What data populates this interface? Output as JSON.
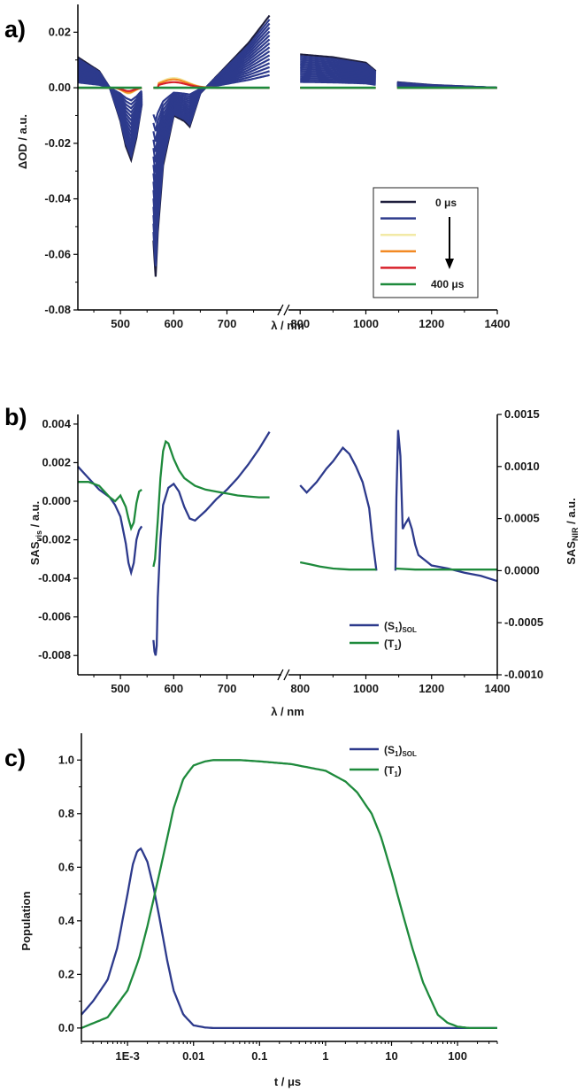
{
  "chart_data": [
    {
      "panel_label": "a)",
      "type": "line",
      "xlabel": "λ / nm",
      "ylabel": "ΔOD / a.u.",
      "xlim": [
        420,
        1400
      ],
      "ylim": [
        -0.08,
        0.03
      ],
      "x_axis_break": [
        780,
        800
      ],
      "x_ticks": [
        "500",
        "600",
        "700",
        "800",
        "1000",
        "1200",
        "1400"
      ],
      "y_ticks": [
        "0.02",
        "0.00",
        "-0.02",
        "-0.04",
        "-0.06",
        "-0.08"
      ],
      "legend": {
        "placement": "inside-right",
        "start_label": "0 μs",
        "end_label": "400 μs"
      },
      "series_colors": [
        "#1e1e3c",
        "#2d3a8c",
        "#f2eaa6",
        "#f28a24",
        "#d8202a",
        "#1e8a3c"
      ],
      "visible_segments": [
        [
          420,
          540
        ],
        [
          562,
          780
        ],
        [
          800,
          1030
        ],
        [
          1095,
          1400
        ]
      ],
      "profile_at_0us": {
        "x": [
          420,
          460,
          480,
          500,
          510,
          520,
          530,
          540,
          562,
          566,
          570,
          580,
          600,
          620,
          630,
          650,
          680,
          700,
          740,
          780,
          800,
          900,
          1000,
          1030,
          1095,
          1200,
          1400
        ],
        "y": [
          0.011,
          0.006,
          0.0,
          -0.012,
          -0.021,
          -0.026,
          -0.018,
          -0.006,
          -0.055,
          -0.068,
          -0.052,
          -0.028,
          -0.01,
          -0.012,
          -0.014,
          -0.002,
          0.004,
          0.008,
          0.016,
          0.026,
          0.012,
          0.011,
          0.009,
          0.006,
          0.002,
          0.001,
          0.0
        ]
      }
    },
    {
      "panel_label": "b)",
      "type": "line",
      "xlabel": "λ / nm",
      "ylabel_left": "SAS",
      "ylabel_left_sub": "vis",
      "ylabel_left_rest": " / a.u.",
      "ylabel_right": "SAS",
      "ylabel_right_sub": "NIR",
      "ylabel_right_rest": " / a.u.",
      "xlim": [
        420,
        1400
      ],
      "ylim_left": [
        -0.009,
        0.0045
      ],
      "ylim_right": [
        -0.001,
        0.0015
      ],
      "x_axis_break": [
        780,
        800
      ],
      "x_ticks": [
        "500",
        "600",
        "700",
        "800",
        "1000",
        "1200",
        "1400"
      ],
      "y_ticks_left": [
        "0.004",
        "0.002",
        "0.000",
        "-0.002",
        "-0.004",
        "-0.006",
        "-0.008"
      ],
      "y_ticks_right": [
        "0.0015",
        "0.0010",
        "0.0005",
        "0.0000",
        "-0.0005",
        "-0.0010"
      ],
      "legend": {
        "placement": "lower-right-of-center"
      },
      "series": [
        {
          "name": "(S",
          "name_sub": "1",
          "name_suffix": ")",
          "name_suffix_sub": "SOL",
          "color": "#2d3a8c",
          "vis_segments": [
            {
              "x": [
                420,
                440,
                460,
                480,
                490,
                500,
                510,
                515,
                520,
                525,
                530,
                535,
                540
              ],
              "y": [
                0.0018,
                0.0012,
                0.0006,
                0.0002,
                -0.0002,
                -0.0008,
                -0.0022,
                -0.0032,
                -0.0037,
                -0.0032,
                -0.002,
                -0.0015,
                -0.0013
              ]
            },
            {
              "x": [
                562,
                564,
                566,
                568,
                570,
                575,
                580,
                590,
                600,
                610,
                620,
                630,
                640,
                660,
                680,
                700,
                720,
                740,
                760,
                780
              ],
              "y": [
                -0.0072,
                -0.0078,
                -0.008,
                -0.0075,
                -0.005,
                -0.002,
                -0.0002,
                0.0007,
                0.0009,
                0.0005,
                -0.0003,
                -0.0009,
                -0.001,
                -0.0005,
                0.0001,
                0.0006,
                0.0012,
                0.0019,
                0.0027,
                0.0036
              ]
            }
          ],
          "nir_segments": [
            {
              "x": [
                800,
                820,
                850,
                880,
                900,
                930,
                950,
                970,
                990,
                1010,
                1020,
                1028,
                1032
              ],
              "y": [
                0.00082,
                0.00075,
                0.00085,
                0.00098,
                0.00105,
                0.00118,
                0.00112,
                0.001,
                0.00085,
                0.0006,
                0.0003,
                0.0001,
                0.0
              ]
            },
            {
              "x": [
                1090,
                1093,
                1098,
                1105,
                1112,
                1120,
                1130,
                1140,
                1150,
                1160,
                1180,
                1200,
                1250,
                1300,
                1350,
                1380,
                1400
              ],
              "y": [
                0.0,
                0.0007,
                0.00135,
                0.0011,
                0.0004,
                0.00045,
                0.0005,
                0.0004,
                0.00025,
                0.00015,
                0.0001,
                5e-05,
                2e-05,
                -2e-05,
                -5e-05,
                -8e-05,
                -0.0001
              ]
            }
          ]
        },
        {
          "name": "(T",
          "name_sub": "1",
          "name_suffix": ")",
          "name_suffix_sub": "",
          "color": "#1e8a3c",
          "vis_segments": [
            {
              "x": [
                420,
                440,
                460,
                480,
                490,
                500,
                510,
                515,
                520,
                525,
                530,
                535,
                540
              ],
              "y": [
                0.001,
                0.001,
                0.0008,
                0.0002,
                0.0,
                0.0003,
                -0.0003,
                -0.0009,
                -0.0014,
                -0.0011,
                -0.0001,
                0.0005,
                0.0006
              ]
            },
            {
              "x": [
                562,
                565,
                570,
                575,
                580,
                585,
                590,
                600,
                610,
                620,
                640,
                660,
                680,
                700,
                720,
                740,
                760,
                780
              ],
              "y": [
                -0.0034,
                -0.003,
                -0.001,
                0.0012,
                0.0026,
                0.0031,
                0.003,
                0.0022,
                0.0016,
                0.0012,
                0.0008,
                0.0006,
                0.0005,
                0.0004,
                0.0003,
                0.00025,
                0.0002,
                0.0002
              ]
            }
          ],
          "nir_segments": [
            {
              "x": [
                800,
                830,
                860,
                900,
                950,
                1000,
                1032
              ],
              "y": [
                8e-05,
                6e-05,
                4e-05,
                2e-05,
                1e-05,
                1e-05,
                1e-05
              ]
            },
            {
              "x": [
                1090,
                1150,
                1200,
                1250,
                1300,
                1350,
                1400
              ],
              "y": [
                2e-05,
                1e-05,
                1e-05,
                1e-05,
                1e-05,
                1e-05,
                1e-05
              ]
            }
          ]
        }
      ]
    },
    {
      "panel_label": "c)",
      "type": "line",
      "xlabel": "t / μs",
      "ylabel": "Population",
      "x_scale": "log",
      "xlim": [
        0.0002,
        400
      ],
      "ylim": [
        -0.05,
        1.1
      ],
      "x_ticks": [
        {
          "value": 0.001,
          "label": "1E-3"
        },
        {
          "value": 0.01,
          "label": "0.01"
        },
        {
          "value": 0.1,
          "label": "0.1"
        },
        {
          "value": 1,
          "label": "1"
        },
        {
          "value": 10,
          "label": "10"
        },
        {
          "value": 100,
          "label": "100"
        }
      ],
      "y_ticks": [
        "1.0",
        "0.8",
        "0.6",
        "0.4",
        "0.2",
        "0.0"
      ],
      "legend": {
        "placement": "top-right"
      },
      "series": [
        {
          "name": "(S",
          "name_sub": "1",
          "name_suffix": ")",
          "name_suffix_sub": "SOL",
          "color": "#2d3a8c",
          "x": [
            0.0002,
            0.0003,
            0.0005,
            0.0007,
            0.001,
            0.0012,
            0.0014,
            0.0016,
            0.002,
            0.0025,
            0.003,
            0.004,
            0.005,
            0.007,
            0.01,
            0.015,
            0.02,
            0.05,
            0.1,
            1,
            10,
            100,
            400
          ],
          "y": [
            0.05,
            0.1,
            0.18,
            0.3,
            0.5,
            0.61,
            0.66,
            0.67,
            0.62,
            0.52,
            0.42,
            0.25,
            0.14,
            0.05,
            0.01,
            0.002,
            0.0,
            0.0,
            0.0,
            0.0,
            0.0,
            0.0,
            0.0
          ]
        },
        {
          "name": "(T",
          "name_sub": "1",
          "name_suffix": ")",
          "name_suffix_sub": "",
          "color": "#1e8a3c",
          "x": [
            0.0002,
            0.0005,
            0.001,
            0.0015,
            0.002,
            0.003,
            0.005,
            0.007,
            0.01,
            0.015,
            0.02,
            0.05,
            0.1,
            0.3,
            1,
            2,
            3,
            5,
            7,
            10,
            15,
            20,
            30,
            50,
            70,
            100,
            150,
            400
          ],
          "y": [
            0.0,
            0.04,
            0.14,
            0.26,
            0.38,
            0.57,
            0.82,
            0.93,
            0.98,
            0.995,
            1.0,
            1.0,
            0.995,
            0.985,
            0.96,
            0.92,
            0.88,
            0.8,
            0.71,
            0.58,
            0.42,
            0.31,
            0.17,
            0.05,
            0.02,
            0.005,
            0.0,
            0.0
          ]
        }
      ]
    }
  ]
}
